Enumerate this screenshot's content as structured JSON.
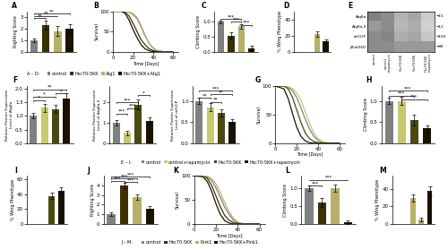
{
  "chart_data": [
    {
      "type": "bar",
      "title": "A",
      "ylabel": "Righting Score",
      "categories": [
        null,
        null,
        null,
        null
      ],
      "values": [
        1.0,
        2.3,
        1.8,
        2.0
      ],
      "errors": [
        0.15,
        0.4,
        0.4,
        0.35
      ],
      "colors": [
        "#808080",
        "#3b3000",
        "#b8b06a",
        "#1a1200"
      ],
      "ylim": [
        0,
        3.5
      ],
      "yticks": [
        0,
        1,
        2,
        3
      ],
      "tick_labels": "y",
      "annotations": [
        {
          "x0": 0,
          "x1": 1,
          "y": 2.85,
          "label": "**"
        },
        {
          "x0": 0,
          "x1": 2,
          "y": 3.05,
          "label": "**"
        },
        {
          "x0": 0,
          "x1": 3,
          "y": 3.25,
          "label": "**"
        }
      ]
    },
    {
      "type": "line",
      "title": "B",
      "xlabel": "Time [Days]",
      "ylabel": "Survival",
      "x": [
        0,
        8,
        12,
        16,
        20,
        24,
        28,
        32,
        36,
        40,
        44,
        48,
        52,
        56,
        60
      ],
      "series": [
        {
          "color": "#808080",
          "values": [
            100,
            100,
            100,
            98,
            92,
            82,
            62,
            40,
            22,
            10,
            4,
            2,
            0,
            0,
            0
          ]
        },
        {
          "color": "#3b3000",
          "values": [
            100,
            100,
            98,
            88,
            70,
            50,
            30,
            18,
            8,
            4,
            1,
            0,
            0,
            0,
            0
          ]
        },
        {
          "color": "#b8b06a",
          "values": [
            100,
            100,
            100,
            98,
            94,
            85,
            65,
            42,
            22,
            10,
            4,
            2,
            0,
            0,
            0
          ]
        },
        {
          "color": "#1a1200",
          "values": [
            100,
            100,
            95,
            78,
            55,
            35,
            18,
            8,
            3,
            1,
            0,
            0,
            0,
            0,
            0
          ]
        }
      ],
      "xlim": [
        0,
        65
      ],
      "ylim": [
        0,
        100
      ],
      "xticks": [
        0,
        20,
        40,
        60
      ],
      "yticks": [
        0,
        50,
        100
      ]
    },
    {
      "type": "bar",
      "title": "C",
      "ylabel": "Climbing Score",
      "categories": [
        null,
        null,
        null,
        null
      ],
      "values": [
        1.0,
        0.55,
        0.85,
        0.12
      ],
      "errors": [
        0.04,
        0.09,
        0.07,
        0.1
      ],
      "colors": [
        "#808080",
        "#3b3000",
        "#b8b06a",
        "#1a1200"
      ],
      "ylim": [
        0,
        1.35
      ],
      "yticks": [
        {
          "value": 0,
          "label": "0.0"
        },
        0.5,
        {
          "value": 1,
          "label": "1.0"
        }
      ],
      "tick_labels": "y",
      "annotations": [
        {
          "x0": 0,
          "x1": 2,
          "y": 1.07,
          "label": "***"
        },
        {
          "x0": 1,
          "x1": 2,
          "y": 0.98,
          "label": "***"
        },
        {
          "x0": 2,
          "x1": 3,
          "y": 0.87,
          "label": "***"
        }
      ]
    },
    {
      "type": "bar",
      "title": "D",
      "ylabel": "% Wing Phenotype",
      "categories": [
        null,
        null,
        null,
        null
      ],
      "values": [
        0,
        0,
        22,
        13
      ],
      "errors": [
        0,
        0,
        3,
        2
      ],
      "colors": [
        "#808080",
        "#3b3000",
        "#b8b06a",
        "#1a1200"
      ],
      "ylim": [
        0,
        50
      ],
      "yticks": [
        0,
        20,
        40
      ],
      "tick_labels": "y"
    },
    {
      "type": "heatmap",
      "title": "E",
      "rows": [
        "Atg8a",
        "Atg8a-II",
        "ref(2)P",
        "βTub56D"
      ],
      "right_labels": [
        "→15",
        "→12",
        "→100",
        "→48"
      ],
      "columns": [
        "control",
        "control\n+rapamycin",
        "Hsc70-5KK",
        "Hsc70-5KK",
        "Hsc70-5KK\n+rapamycin"
      ],
      "cells": [
        [
          0.5,
          0.55,
          0.7,
          0.65,
          0.8
        ],
        [
          0.6,
          0.55,
          0.72,
          0.68,
          0.82
        ],
        [
          0.55,
          0.52,
          0.68,
          0.65,
          0.78
        ],
        [
          0.55,
          0.55,
          0.6,
          0.6,
          0.6
        ]
      ],
      "clim": [
        0,
        1
      ]
    },
    {
      "type": "bar",
      "title": "F",
      "ylabel": "Relative Protein Expression\nLevel of Atg8a",
      "categories": [
        null,
        null,
        null,
        null
      ],
      "values": [
        1.0,
        1.3,
        1.25,
        1.65
      ],
      "errors": [
        0.1,
        0.15,
        0.15,
        0.18
      ],
      "colors": [
        "#808080",
        "#c8c870",
        "#4a4a10",
        "#1a1200"
      ],
      "ylim": [
        0,
        2.1
      ],
      "yticks": [
        {
          "value": 0,
          "label": "0.0"
        },
        0.5,
        {
          "value": 1,
          "label": "1.0"
        },
        1.5,
        {
          "value": 2,
          "label": "2.0"
        }
      ],
      "tick_labels": "y",
      "annotations": [
        {
          "x0": 0,
          "x1": 3,
          "y": 1.95,
          "label": "**"
        },
        {
          "x0": 0,
          "x1": 1,
          "y": 1.55,
          "label": "*"
        },
        {
          "x0": 0,
          "x1": 2,
          "y": 1.68,
          "label": "*"
        },
        {
          "x0": 2,
          "x1": 3,
          "y": 1.8,
          "label": "*"
        }
      ]
    },
    {
      "type": "bar",
      "ylabel": "Relative Protein Expression\nLevel of Atg8a-II",
      "categories": [
        null,
        null,
        null,
        null
      ],
      "values": [
        1.0,
        0.5,
        1.9,
        1.1
      ],
      "errors": [
        0.15,
        0.1,
        0.25,
        0.15
      ],
      "colors": [
        "#808080",
        "#c8c870",
        "#4a4a10",
        "#1a1200"
      ],
      "ylim": [
        0,
        2.8
      ],
      "yticks": [
        0,
        1,
        2
      ],
      "tick_labels": "y",
      "annotations": [
        {
          "x0": 0,
          "x1": 1,
          "y": 1.4,
          "label": "***"
        },
        {
          "x0": 0,
          "x1": 2,
          "y": 1.95,
          "label": "***"
        },
        {
          "x0": 1,
          "x1": 2,
          "y": 1.68,
          "label": "***"
        },
        {
          "x0": 2,
          "x1": 3,
          "y": 2.3,
          "label": "*"
        }
      ]
    },
    {
      "type": "bar",
      "ylabel": "Relative Protein Expression\nLevel of ref(2)P",
      "categories": [
        null,
        null,
        null,
        null
      ],
      "values": [
        1.0,
        0.85,
        0.72,
        0.5
      ],
      "errors": [
        0.08,
        0.09,
        0.08,
        0.06
      ],
      "colors": [
        "#808080",
        "#c8c870",
        "#4a4a10",
        "#1a1200"
      ],
      "ylim": [
        0,
        1.35
      ],
      "yticks": [
        {
          "value": 0,
          "label": "0.0"
        },
        0.5,
        {
          "value": 1,
          "label": "1.0"
        }
      ],
      "tick_labels": "y",
      "annotations": [
        {
          "x0": 0,
          "x1": 3,
          "y": 1.22,
          "label": "***"
        },
        {
          "x0": 0,
          "x1": 1,
          "y": 1.05,
          "label": "**"
        },
        {
          "x0": 1,
          "x1": 2,
          "y": 0.95,
          "label": "**"
        },
        {
          "x0": 1,
          "x1": 3,
          "y": 1.13,
          "label": "**"
        }
      ]
    },
    {
      "type": "line",
      "title": "G",
      "xlabel": "Time [Days]",
      "ylabel": "Survival",
      "x": [
        0,
        8,
        12,
        16,
        20,
        24,
        28,
        32,
        36,
        40,
        44,
        48,
        52,
        56,
        60
      ],
      "series": [
        {
          "color": "#808080",
          "values": [
            100,
            100,
            98,
            92,
            80,
            62,
            42,
            25,
            12,
            5,
            2,
            0,
            0,
            0,
            0
          ]
        },
        {
          "color": "#c8c870",
          "values": [
            100,
            100,
            99,
            95,
            88,
            75,
            55,
            35,
            18,
            8,
            3,
            1,
            0,
            0,
            0
          ]
        },
        {
          "color": "#4a4a10",
          "values": [
            100,
            100,
            95,
            80,
            58,
            36,
            18,
            8,
            3,
            1,
            0,
            0,
            0,
            0,
            0
          ]
        },
        {
          "color": "#1a1200",
          "values": [
            100,
            95,
            78,
            52,
            28,
            12,
            4,
            1,
            0,
            0,
            0,
            0,
            0,
            0,
            0
          ]
        }
      ],
      "xlim": [
        0,
        65
      ],
      "ylim": [
        0,
        100
      ],
      "xticks": [
        0,
        20,
        40,
        60
      ],
      "yticks": [
        0,
        50,
        100
      ]
    },
    {
      "type": "bar",
      "title": "H",
      "ylabel": "Climbing Score",
      "categories": [
        null,
        null,
        null,
        null
      ],
      "values": [
        1.0,
        1.0,
        0.55,
        0.35
      ],
      "errors": [
        0.08,
        0.1,
        0.12,
        0.07
      ],
      "colors": [
        "#808080",
        "#c8c870",
        "#4a4a10",
        "#1a1200"
      ],
      "ylim": [
        0,
        1.35
      ],
      "yticks": [
        {
          "value": 0,
          "label": "0.0"
        },
        0.5,
        {
          "value": 1,
          "label": "1.0"
        }
      ],
      "tick_labels": "y",
      "annotations": [
        {
          "x0": 0,
          "x1": 2,
          "y": 1.1,
          "label": "***"
        },
        {
          "x0": 0,
          "x1": 3,
          "y": 1.22,
          "label": "***"
        },
        {
          "x0": 1,
          "x1": 3,
          "y": 1.02,
          "label": "***"
        }
      ]
    },
    {
      "type": "bar",
      "title": "I",
      "ylabel": "% Wing Phenotype",
      "categories": [
        null,
        null,
        null,
        null
      ],
      "values": [
        0,
        0,
        38,
        45
      ],
      "errors": [
        0,
        0,
        4,
        5
      ],
      "colors": [
        "#808080",
        "#c8c870",
        "#4a4a10",
        "#1a1200"
      ],
      "ylim": [
        0,
        65
      ],
      "yticks": [
        0,
        20,
        40,
        60
      ],
      "tick_labels": "y"
    },
    {
      "type": "bar",
      "title": "J",
      "ylabel": "Righting Score",
      "categories": [
        null,
        null,
        null,
        null
      ],
      "values": [
        1.0,
        4.0,
        2.8,
        1.6
      ],
      "errors": [
        0.18,
        0.3,
        0.25,
        0.22
      ],
      "colors": [
        "#808080",
        "#3b3000",
        "#b8b06a",
        "#1a1200"
      ],
      "ylim": [
        0,
        5.0
      ],
      "yticks": [
        0,
        1,
        2,
        3,
        4
      ],
      "tick_labels": "y",
      "annotations": [
        {
          "x0": 0,
          "x1": 1,
          "y": 4.4,
          "label": "***"
        },
        {
          "x0": 0,
          "x1": 2,
          "y": 4.65,
          "label": "***"
        },
        {
          "x0": 0,
          "x1": 3,
          "y": 4.82,
          "label": "***"
        },
        {
          "x0": 1,
          "x1": 2,
          "y": 4.25,
          "label": "***"
        }
      ]
    },
    {
      "type": "line",
      "title": "K",
      "xlabel": "Time [Days]",
      "ylabel": "Survival",
      "x": [
        0,
        8,
        12,
        16,
        20,
        24,
        28,
        32,
        36,
        40,
        44,
        48,
        52,
        56,
        60
      ],
      "series": [
        {
          "color": "#808080",
          "values": [
            100,
            100,
            98,
            90,
            75,
            55,
            35,
            20,
            8,
            3,
            1,
            0,
            0,
            0,
            0
          ]
        },
        {
          "color": "#3b3000",
          "values": [
            100,
            100,
            95,
            80,
            58,
            36,
            18,
            8,
            3,
            1,
            0,
            0,
            0,
            0,
            0
          ]
        },
        {
          "color": "#b8b06a",
          "values": [
            100,
            100,
            99,
            94,
            83,
            65,
            44,
            26,
            12,
            4,
            1,
            0,
            0,
            0,
            0
          ]
        },
        {
          "color": "#1a1200",
          "values": [
            100,
            98,
            88,
            68,
            42,
            20,
            7,
            2,
            0,
            0,
            0,
            0,
            0,
            0,
            0
          ]
        }
      ],
      "xlim": [
        0,
        65
      ],
      "ylim": [
        0,
        100
      ],
      "xticks": [
        0,
        20,
        40,
        60
      ],
      "yticks": [
        0,
        50,
        100
      ]
    },
    {
      "type": "bar",
      "title": "L",
      "ylabel": "Climbing Score",
      "categories": [
        null,
        null,
        null,
        null
      ],
      "values": [
        1.0,
        0.6,
        1.0,
        0.05
      ],
      "errors": [
        0.08,
        0.12,
        0.1,
        0.04
      ],
      "colors": [
        "#808080",
        "#3b3000",
        "#b8b06a",
        "#1a1200"
      ],
      "ylim": [
        0,
        1.35
      ],
      "yticks": [
        {
          "value": 0,
          "label": "0.0"
        },
        0.5,
        {
          "value": 1,
          "label": "1.0"
        }
      ],
      "tick_labels": "y",
      "annotations": [
        {
          "x0": 0,
          "x1": 1,
          "y": 1.05,
          "label": "***"
        },
        {
          "x0": 0,
          "x1": 3,
          "y": 1.22,
          "label": "***"
        }
      ]
    },
    {
      "type": "bar",
      "title": "M",
      "ylabel": "% Wing Phenotype",
      "categories": [
        null,
        null,
        null,
        null,
        null
      ],
      "values": [
        0,
        0,
        30,
        5,
        38
      ],
      "errors": [
        0,
        0,
        4,
        2,
        5
      ],
      "colors": [
        "#808080",
        "#3b3000",
        "#b8b06a",
        "#b8b06a",
        "#1a1200"
      ],
      "ylim": [
        0,
        55
      ],
      "yticks": [
        0,
        20,
        40
      ],
      "tick_labels": "y"
    }
  ],
  "legends": [
    {
      "title": "A – D:",
      "labels": [
        "control",
        "Hsc70-5KK",
        "Atg1",
        "Hsc70-5KK+Atg1"
      ],
      "colors": [
        "#808080",
        "#3b3000",
        "#b8b06a",
        "#1a1200"
      ]
    },
    {
      "title": "E – I:",
      "labels": [
        "control",
        "control+rapamycin",
        "Hsc70-5KK",
        "Hsc70-5KK+rapamycin"
      ],
      "colors": [
        "#808080",
        "#c8c870",
        "#4a4a10",
        "#1a1200"
      ]
    },
    {
      "title": "J – M:",
      "labels": [
        "control",
        "Hsc70-5KK",
        "Pink1",
        "Hsc70-5KK+Pink1"
      ],
      "colors": [
        "#808080",
        "#3b3000",
        "#b8b06a",
        "#1a1200"
      ]
    }
  ]
}
